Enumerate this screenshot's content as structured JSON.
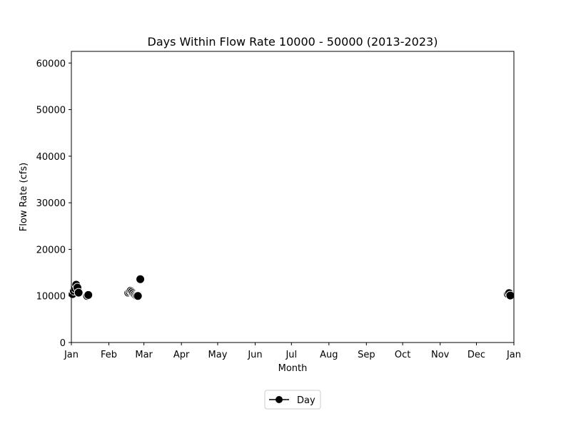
{
  "chart_data": {
    "type": "scatter",
    "title": "Days Within Flow Rate 10000 - 50000 (2013-2023)",
    "xlabel": "Month",
    "ylabel": "Flow Rate (cfs)",
    "x_axis": {
      "type": "date",
      "range": [
        "2000-01-01",
        "2001-01-01"
      ]
    },
    "x_ticks": [
      {
        "date": "2000-01-01",
        "label": "Jan"
      },
      {
        "date": "2000-02-01",
        "label": "Feb"
      },
      {
        "date": "2000-03-01",
        "label": "Mar"
      },
      {
        "date": "2000-04-01",
        "label": "Apr"
      },
      {
        "date": "2000-05-01",
        "label": "May"
      },
      {
        "date": "2000-06-01",
        "label": "Jun"
      },
      {
        "date": "2000-07-01",
        "label": "Jul"
      },
      {
        "date": "2000-08-01",
        "label": "Aug"
      },
      {
        "date": "2000-09-01",
        "label": "Sep"
      },
      {
        "date": "2000-10-01",
        "label": "Oct"
      },
      {
        "date": "2000-11-01",
        "label": "Nov"
      },
      {
        "date": "2000-12-01",
        "label": "Dec"
      },
      {
        "date": "2001-01-01",
        "label": "Jan"
      }
    ],
    "ylim": [
      0,
      62500
    ],
    "y_ticks": [
      0,
      10000,
      20000,
      30000,
      40000,
      50000,
      60000
    ],
    "grid": false,
    "legend": {
      "position": "bottom-center",
      "entries": [
        {
          "label": "Day",
          "marker": "line-dot",
          "color": "#000000"
        }
      ]
    },
    "series": [
      {
        "name": "Day",
        "color": "#000000",
        "points": [
          {
            "x": "2000-01-02",
            "y": 10400
          },
          {
            "x": "2000-01-03",
            "y": 11100
          },
          {
            "x": "2000-01-04",
            "y": 11600
          },
          {
            "x": "2000-01-05",
            "y": 12400
          },
          {
            "x": "2000-01-06",
            "y": 11800
          },
          {
            "x": "2000-01-07",
            "y": 10700
          },
          {
            "x": "2000-01-14",
            "y": 10000
          },
          {
            "x": "2000-01-15",
            "y": 10200
          },
          {
            "x": "2000-02-17",
            "y": 10700
          },
          {
            "x": "2000-02-18",
            "y": 10900
          },
          {
            "x": "2000-02-19",
            "y": 11100
          },
          {
            "x": "2000-02-20",
            "y": 10900
          },
          {
            "x": "2000-02-21",
            "y": 10600
          },
          {
            "x": "2000-02-22",
            "y": 10300
          },
          {
            "x": "2000-02-23",
            "y": 10100
          },
          {
            "x": "2000-02-24",
            "y": 10000
          },
          {
            "x": "2000-02-25",
            "y": 10000
          },
          {
            "x": "2000-02-27",
            "y": 13600
          },
          {
            "x": "2000-12-27",
            "y": 10400
          },
          {
            "x": "2000-12-28",
            "y": 10600
          },
          {
            "x": "2000-12-29",
            "y": 10100
          }
        ]
      }
    ]
  }
}
